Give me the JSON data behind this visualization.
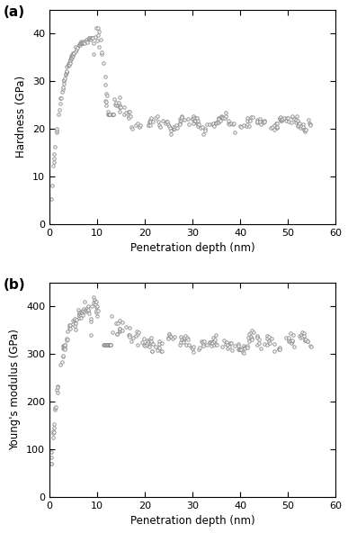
{
  "fig_width": 3.87,
  "fig_height": 5.92,
  "dpi": 100,
  "background_color": "#ffffff",
  "marker": "o",
  "marker_size": 2.5,
  "marker_face_color": "white",
  "marker_edge_color": "#888888",
  "marker_edge_width": 0.6,
  "panel_a": {
    "label": "(a)",
    "xlabel": "Penetration depth (nm)",
    "ylabel": "Hardness (GPa)",
    "xlim": [
      0,
      60
    ],
    "ylim": [
      0,
      45
    ],
    "xticks": [
      0,
      10,
      20,
      30,
      40,
      50,
      60
    ],
    "yticks": [
      0,
      10,
      20,
      30,
      40
    ]
  },
  "panel_b": {
    "label": "(b)",
    "xlabel": "Penetration depth (nm)",
    "ylabel": "Young's modulus (GPa)",
    "xlim": [
      0,
      60
    ],
    "ylim": [
      0,
      450
    ],
    "xticks": [
      0,
      10,
      20,
      30,
      40,
      50,
      60
    ],
    "yticks": [
      0,
      100,
      200,
      300,
      400
    ]
  }
}
